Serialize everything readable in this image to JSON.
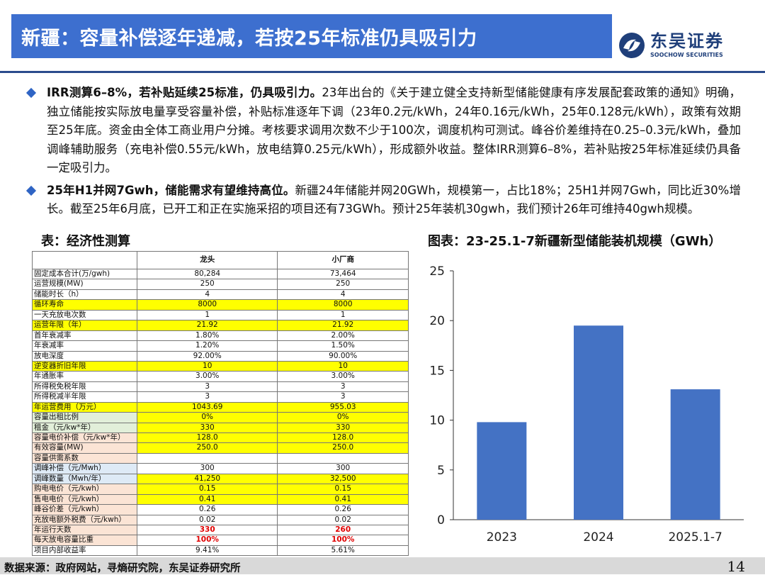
{
  "header": {
    "title": "新疆：容量补偿逐年递减，若按25年标准仍具吸引力",
    "logo_cn": "东吴证券",
    "logo_en": "SOOCHOW SECURITIES"
  },
  "bullets": [
    {
      "lead": "IRR测算6–8%，若补贴延续25标准，仍具吸引力。",
      "body": "23年出台的《关于建立健全支持新型储能健康有序发展配套政策的通知》明确，独立储能按实际放电量享受容量补偿，补贴标准逐年下调（23年0.2元/kWh，24年0.16元/kWh，25年0.128元/kWh），政策有效期至25年底。资金由全体工商业用户分摊。考核要求调用次数不少于100次，调度机构可测试。峰谷价差维持在0.25–0.3元/kWh，叠加调峰辅助服务（充电补偿0.55元/kWh，放电结算0.25元/kWh），形成额外收益。整体IRR测算6–8%，若补贴按25年标准延续仍具备一定吸引力。"
    },
    {
      "lead": "25年H1并网7Gwh，储能需求有望维持高位。",
      "body": "新疆24年储能并网20GWh，规模第一，占比18%；25H1并网7Gwh，同比近30%增长。截至25年6月底，已开工和正在实施采招的项目还有73GWh。预计25年装机30gwh，我们预计26年可维持40gwh规模。"
    }
  ],
  "table": {
    "title": "表：经济性测算",
    "headers": [
      "",
      "龙头",
      "小厂商"
    ],
    "rows": [
      {
        "label": "固定成本合计(万/gwh)",
        "a": "80,284",
        "b": "73,464",
        "hl": "",
        "lbg": ""
      },
      {
        "label": "运营规模(MW)",
        "a": "250",
        "b": "250",
        "hl": "",
        "lbg": ""
      },
      {
        "label": "储能时长（h）",
        "a": "4",
        "b": "4",
        "hl": "",
        "lbg": ""
      },
      {
        "label": "循环寿命",
        "a": "8000",
        "b": "8000",
        "hl": "y",
        "lbg": "y"
      },
      {
        "label": "一天充放电次数",
        "a": "1",
        "b": "1",
        "hl": "",
        "lbg": ""
      },
      {
        "label": "运营年限（年）",
        "a": "21.92",
        "b": "21.92",
        "hl": "y",
        "lbg": "y"
      },
      {
        "label": "首年衰减率",
        "a": "1.80%",
        "b": "2.00%",
        "hl": "",
        "lbg": ""
      },
      {
        "label": "年衰减率",
        "a": "1.20%",
        "b": "1.50%",
        "hl": "",
        "lbg": ""
      },
      {
        "label": "放电深度",
        "a": "92.00%",
        "b": "90.00%",
        "hl": "",
        "lbg": ""
      },
      {
        "label": "逆变器折旧年限",
        "a": "10",
        "b": "10",
        "hl": "y",
        "lbg": "y"
      },
      {
        "label": "年通胀率",
        "a": "3.00%",
        "b": "3.00%",
        "hl": "",
        "lbg": ""
      },
      {
        "label": "所得税免税年限",
        "a": "3",
        "b": "3",
        "hl": "",
        "lbg": ""
      },
      {
        "label": "所得税减半年限",
        "a": "3",
        "b": "3",
        "hl": "",
        "lbg": ""
      },
      {
        "label": "年运营费用（万元）",
        "a": "1043.69",
        "b": "955.03",
        "hl": "y",
        "lbg": "y"
      },
      {
        "label": "容量出租比例",
        "a": "0%",
        "b": "0%",
        "hl": "y",
        "lbg": "g"
      },
      {
        "label": "租金（元/kw*年）",
        "a": "330",
        "b": "330",
        "hl": "y",
        "lbg": "g"
      },
      {
        "label": "容量电价补偿（元/kw*年）",
        "a": "128.0",
        "b": "128.0",
        "hl": "y",
        "lbg": "o"
      },
      {
        "label": "有效容量(MW)",
        "a": "250.0",
        "b": "250.0",
        "hl": "y",
        "lbg": "o"
      },
      {
        "label": "容量供需系数",
        "a": "",
        "b": "",
        "hl": "",
        "lbg": "o"
      },
      {
        "label": "调峰补偿（元/Mwh）",
        "a": "300",
        "b": "300",
        "hl": "",
        "lbg": "b"
      },
      {
        "label": "调峰数量（Mwh/年）",
        "a": "41,250",
        "b": "32,500",
        "hl": "y",
        "lbg": "b"
      },
      {
        "label": "购电电价（元/kwh）",
        "a": "0.15",
        "b": "0.15",
        "hl": "y",
        "lbg": "o"
      },
      {
        "label": "售电电价（元/kwh）",
        "a": "0.41",
        "b": "0.41",
        "hl": "y",
        "lbg": "o"
      },
      {
        "label": "峰谷价差（元/kwh）",
        "a": "0.26",
        "b": "0.26",
        "hl": "",
        "lbg": "o"
      },
      {
        "label": "充放电额外税费（元/kwh）",
        "a": "0.02",
        "b": "0.02",
        "hl": "",
        "lbg": "o"
      },
      {
        "label": "年运行天数",
        "a": "330",
        "b": "260",
        "hl": "r",
        "lbg": "o"
      },
      {
        "label": "每天放电容量比重",
        "a": "100%",
        "b": "100%",
        "hl": "r",
        "lbg": "o"
      },
      {
        "label": "项目内部收益率",
        "a": "9.41%",
        "b": "5.61%",
        "hl": "",
        "lbg": ""
      }
    ]
  },
  "chart_title": "图表：23-25.1-7新疆新型储能装机规模（GWh）",
  "chart_data": {
    "type": "bar",
    "title": "图表：23-25.1-7新疆新型储能装机规模（GWh）",
    "categories": [
      "2023",
      "2024",
      "2025.1-7"
    ],
    "values": [
      9.8,
      19.5,
      13.1
    ],
    "ylim": [
      0,
      25
    ],
    "yticks": [
      0,
      5,
      10,
      15,
      20,
      25
    ],
    "color": "#4472c4",
    "grid": false,
    "legend": "none"
  },
  "footer": {
    "source": "数据来源：政府网站，寻熵研究院，东吴证券研究所",
    "page": "14"
  }
}
